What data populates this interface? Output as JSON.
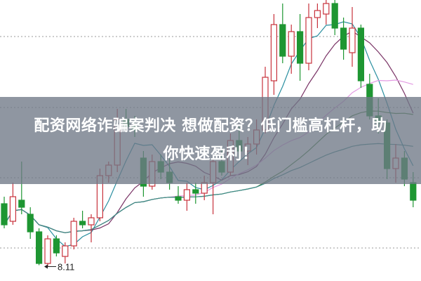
{
  "caption": {
    "line1": "配资网络诈骗案判决 想做配资？低门槛高杠杆，助",
    "line2": "你快速盈利！"
  },
  "chart_data": {
    "type": "candlestick",
    "title": "",
    "up_color": "#c8323c",
    "down_color": "#1e9632",
    "ylim": [
      8.1,
      15.7
    ],
    "grid": "horizontal-dotted",
    "grid_levels": [
      8.64,
      10.64,
      12.64,
      14.66
    ],
    "annotation": {
      "label": "8.11",
      "candle_index": 5,
      "value": 8.11
    },
    "moving_averages": [
      {
        "period": 5,
        "color": "#2a8fa0"
      },
      {
        "period": 10,
        "color": "#7a3466"
      },
      {
        "period": 20,
        "color": "#e39be3"
      },
      {
        "period": 30,
        "color": "#3f7f3a"
      },
      {
        "period": 60,
        "color": "#3d8a8a"
      }
    ],
    "ohlc": [
      [
        9.9,
        10.1,
        9.2,
        9.3
      ],
      [
        9.4,
        10.5,
        9.3,
        10.1
      ],
      [
        10.0,
        11.1,
        9.6,
        9.8
      ],
      [
        9.6,
        9.8,
        8.9,
        9.1
      ],
      [
        9.1,
        9.2,
        8.15,
        8.2
      ],
      [
        8.2,
        9.0,
        8.11,
        8.9
      ],
      [
        8.9,
        9.0,
        8.4,
        8.5
      ],
      [
        8.4,
        8.8,
        8.2,
        8.7
      ],
      [
        8.7,
        9.5,
        8.6,
        9.4
      ],
      [
        9.4,
        9.7,
        9.2,
        9.3
      ],
      [
        9.3,
        9.6,
        8.8,
        9.5
      ],
      [
        9.5,
        10.9,
        9.4,
        10.7
      ],
      [
        10.7,
        11.1,
        10.5,
        11.0
      ],
      [
        11.0,
        12.6,
        10.8,
        12.3
      ],
      [
        12.3,
        12.6,
        12.0,
        12.1
      ],
      [
        12.1,
        12.4,
        11.8,
        12.0
      ],
      [
        11.2,
        11.4,
        10.1,
        10.4
      ],
      [
        10.4,
        11.3,
        10.3,
        11.1
      ],
      [
        11.1,
        11.3,
        10.6,
        10.8
      ],
      [
        10.8,
        11.2,
        10.3,
        10.5
      ],
      [
        10.1,
        10.4,
        9.9,
        10.0
      ],
      [
        10.0,
        10.5,
        9.7,
        10.3
      ],
      [
        10.3,
        10.5,
        9.9,
        10.2
      ],
      [
        10.2,
        10.7,
        10.0,
        10.5
      ],
      [
        10.5,
        11.2,
        9.6,
        11.1
      ],
      [
        11.1,
        11.5,
        10.7,
        10.8
      ],
      [
        10.8,
        11.9,
        10.7,
        11.7
      ],
      [
        11.7,
        12.1,
        11.2,
        11.4
      ],
      [
        11.4,
        11.8,
        11.0,
        11.6
      ],
      [
        11.6,
        12.3,
        11.3,
        12.0
      ],
      [
        12.0,
        13.8,
        11.9,
        13.5
      ],
      [
        13.4,
        15.3,
        13.0,
        15.0
      ],
      [
        15.0,
        15.6,
        13.9,
        14.1
      ],
      [
        14.1,
        15.0,
        13.6,
        14.8
      ],
      [
        14.8,
        15.3,
        13.4,
        13.9
      ],
      [
        13.9,
        15.6,
        13.7,
        15.2
      ],
      [
        15.2,
        15.6,
        14.9,
        15.4
      ],
      [
        15.3,
        15.7,
        15.0,
        15.6
      ],
      [
        15.6,
        15.7,
        14.7,
        14.9
      ],
      [
        14.9,
        15.2,
        14.0,
        14.3
      ],
      [
        14.2,
        15.5,
        13.8,
        14.9
      ],
      [
        14.9,
        15.0,
        13.2,
        13.4
      ],
      [
        13.3,
        13.6,
        12.3,
        12.4
      ],
      [
        12.4,
        12.9,
        11.9,
        12.2
      ],
      [
        12.2,
        12.3,
        10.6,
        10.9
      ],
      [
        10.9,
        11.6,
        10.5,
        11.2
      ],
      [
        11.2,
        11.4,
        10.4,
        10.6
      ],
      [
        10.5,
        10.8,
        9.8,
        10.0
      ]
    ]
  }
}
